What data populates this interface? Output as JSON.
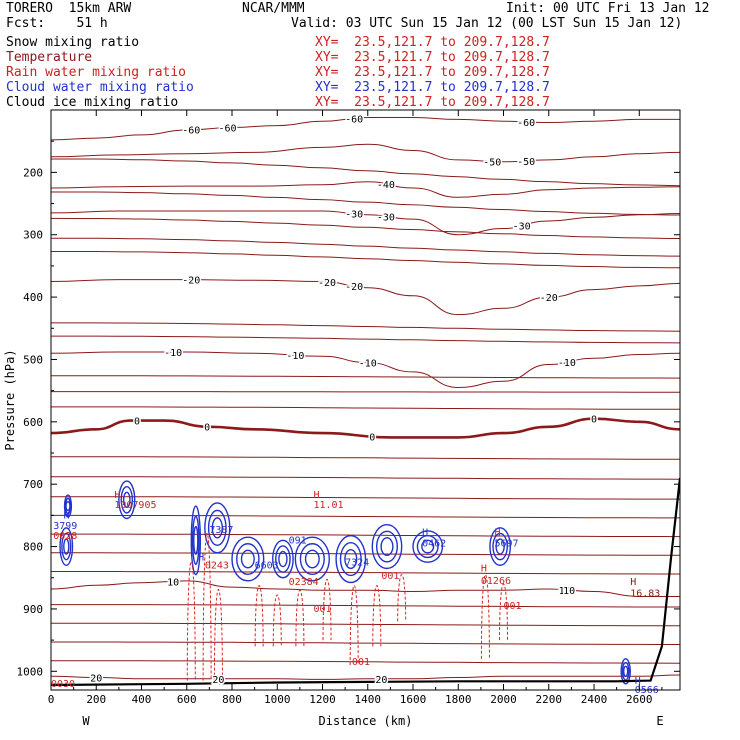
{
  "header": {
    "model": "TORERO  15km ARW",
    "center": "NCAR/MMM",
    "init": "Init: 00 UTC Fri 13 Jan 12",
    "fcst": "Fcst:    51 h",
    "valid": "Valid: 03 UTC Sun 15 Jan 12 (00 LST Sun 15 Jan 12)"
  },
  "legend": [
    {
      "name": "Snow mixing ratio",
      "xy": "XY=  23.5,121.7 to 209.7,128.7",
      "color": "#000000"
    },
    {
      "name": "Temperature",
      "xy": "XY=  23.5,121.7 to 209.7,128.7",
      "color": "#8b1a1a"
    },
    {
      "name": "Rain water mixing ratio",
      "xy": "XY=  23.5,121.7 to 209.7,128.7",
      "color": "#cc2222"
    },
    {
      "name": "Cloud water mixing ratio",
      "xy": "XY=  23.5,121.7 to 209.7,128.7",
      "color": "#2233cc"
    },
    {
      "name": "Cloud ice mixing ratio",
      "xy": "XY=  23.5,121.7 to 209.7,128.7",
      "color": "#000000"
    }
  ],
  "colors": {
    "temperature": "#8b1a1a",
    "rain": "#dd2222",
    "cloud_water": "#2233cc",
    "terrain": "#000000"
  },
  "chart_data": {
    "type": "cross-section",
    "xlabel": "Distance (km)",
    "ylabel": "Pressure (hPa)",
    "xlim": [
      0,
      2780
    ],
    "ylim": [
      1030,
      100
    ],
    "x_ticks": [
      0,
      200,
      400,
      600,
      800,
      1000,
      1200,
      1400,
      1600,
      1800,
      2000,
      2200,
      2400,
      2600
    ],
    "y_ticks": [
      200,
      300,
      400,
      500,
      600,
      700,
      800,
      900,
      1000
    ],
    "x_end_labels": {
      "left": "W",
      "right": "E"
    },
    "temperature_contours": [
      {
        "level": -60,
        "labels": [
          {
            "x": 620,
            "text": "-60"
          },
          {
            "x": 780,
            "text": "-60"
          },
          {
            "x": 1340,
            "text": "-60"
          },
          {
            "x": 2100,
            "text": "-60"
          }
        ],
        "points": [
          [
            0,
            148
          ],
          [
            200,
            145
          ],
          [
            400,
            140
          ],
          [
            600,
            132
          ],
          [
            800,
            128
          ],
          [
            1000,
            125
          ],
          [
            1200,
            118
          ],
          [
            1400,
            112
          ],
          [
            1600,
            112
          ],
          [
            1800,
            115
          ],
          [
            2000,
            118
          ],
          [
            2200,
            120
          ],
          [
            2400,
            118
          ],
          [
            2600,
            115
          ],
          [
            2780,
            115
          ]
        ]
      },
      {
        "level": -50,
        "labels": [
          {
            "x": 1950,
            "text": "-50"
          },
          {
            "x": 2100,
            "text": "-50"
          }
        ],
        "points": [
          [
            0,
            175
          ],
          [
            300,
            172
          ],
          [
            600,
            170
          ],
          [
            900,
            168
          ],
          [
            1200,
            160
          ],
          [
            1400,
            155
          ],
          [
            1600,
            165
          ],
          [
            1800,
            180
          ],
          [
            2000,
            183
          ],
          [
            2200,
            180
          ],
          [
            2400,
            175
          ],
          [
            2600,
            170
          ],
          [
            2780,
            168
          ]
        ]
      },
      {
        "level": -40,
        "labels": [
          {
            "x": 1480,
            "text": "-40"
          }
        ],
        "points": [
          [
            0,
            225
          ],
          [
            300,
            223
          ],
          [
            600,
            222
          ],
          [
            900,
            222
          ],
          [
            1200,
            220
          ],
          [
            1400,
            215
          ],
          [
            1600,
            225
          ],
          [
            1800,
            240
          ],
          [
            2000,
            235
          ],
          [
            2200,
            228
          ],
          [
            2400,
            225
          ],
          [
            2600,
            224
          ],
          [
            2780,
            223
          ]
        ]
      },
      {
        "level": -30,
        "labels": [
          {
            "x": 1340,
            "text": "-30"
          },
          {
            "x": 1480,
            "text": "-30"
          },
          {
            "x": 2080,
            "text": "-30"
          }
        ],
        "points": [
          [
            0,
            265
          ],
          [
            300,
            262
          ],
          [
            600,
            262
          ],
          [
            900,
            262
          ],
          [
            1200,
            262
          ],
          [
            1400,
            268
          ],
          [
            1600,
            275
          ],
          [
            1800,
            300
          ],
          [
            2000,
            290
          ],
          [
            2200,
            278
          ],
          [
            2400,
            272
          ],
          [
            2600,
            268
          ],
          [
            2780,
            266
          ]
        ]
      },
      {
        "level": -20,
        "labels": [
          {
            "x": 620,
            "text": "-20"
          },
          {
            "x": 1220,
            "text": "-20"
          },
          {
            "x": 1340,
            "text": "-20"
          },
          {
            "x": 2200,
            "text": "-20"
          }
        ],
        "points": [
          [
            0,
            375
          ],
          [
            300,
            372
          ],
          [
            600,
            372
          ],
          [
            900,
            373
          ],
          [
            1200,
            375
          ],
          [
            1400,
            385
          ],
          [
            1600,
            398
          ],
          [
            1800,
            428
          ],
          [
            2000,
            418
          ],
          [
            2200,
            400
          ],
          [
            2400,
            388
          ],
          [
            2600,
            382
          ],
          [
            2780,
            378
          ]
        ]
      },
      {
        "level": -10,
        "labels": [
          {
            "x": 540,
            "text": "-10"
          },
          {
            "x": 1080,
            "text": "-10"
          },
          {
            "x": 1400,
            "text": "-10"
          },
          {
            "x": 2280,
            "text": "-10"
          }
        ],
        "points": [
          [
            0,
            490
          ],
          [
            300,
            488
          ],
          [
            600,
            488
          ],
          [
            900,
            490
          ],
          [
            1200,
            495
          ],
          [
            1400,
            505
          ],
          [
            1600,
            520
          ],
          [
            1800,
            545
          ],
          [
            2000,
            535
          ],
          [
            2200,
            508
          ],
          [
            2400,
            498
          ],
          [
            2600,
            492
          ],
          [
            2780,
            490
          ]
        ]
      },
      {
        "level": 0,
        "bold": true,
        "labels": [
          {
            "x": 380,
            "text": "0"
          },
          {
            "x": 690,
            "text": "0"
          },
          {
            "x": 1420,
            "text": "0"
          },
          {
            "x": 2400,
            "text": "0"
          }
        ],
        "points": [
          [
            0,
            618
          ],
          [
            200,
            612
          ],
          [
            350,
            598
          ],
          [
            500,
            598
          ],
          [
            700,
            608
          ],
          [
            900,
            612
          ],
          [
            1200,
            618
          ],
          [
            1500,
            625
          ],
          [
            1800,
            625
          ],
          [
            2000,
            618
          ],
          [
            2200,
            608
          ],
          [
            2400,
            595
          ],
          [
            2600,
            600
          ],
          [
            2780,
            612
          ]
        ]
      },
      {
        "level": 10,
        "labels": [
          {
            "x": 540,
            "text": "10"
          },
          {
            "x": 2270,
            "text": "10"
          },
          {
            "x": 2290,
            "text": "10"
          }
        ],
        "points": [
          [
            0,
            868
          ],
          [
            200,
            862
          ],
          [
            400,
            858
          ],
          [
            600,
            855
          ],
          [
            800,
            865
          ],
          [
            1000,
            868
          ],
          [
            1200,
            870
          ],
          [
            1400,
            870
          ],
          [
            1600,
            872
          ],
          [
            1800,
            870
          ],
          [
            2000,
            870
          ],
          [
            2200,
            868
          ],
          [
            2400,
            872
          ],
          [
            2600,
            880
          ],
          [
            2780,
            880
          ]
        ]
      },
      {
        "level": 20,
        "labels": [
          {
            "x": 200,
            "text": "20"
          },
          {
            "x": 740,
            "text": "20"
          },
          {
            "x": 1460,
            "text": "20"
          }
        ],
        "points": [
          [
            0,
            1008
          ],
          [
            200,
            1010
          ],
          [
            400,
            1012
          ],
          [
            600,
            1012
          ],
          [
            800,
            1012
          ],
          [
            1000,
            1012
          ],
          [
            1200,
            1013
          ],
          [
            1400,
            1012
          ],
          [
            1600,
            1012
          ],
          [
            1800,
            1010
          ],
          [
            2000,
            1008
          ],
          [
            2200,
            1008
          ],
          [
            2400,
            1008
          ],
          [
            2600,
            1008
          ],
          [
            2780,
            1006
          ]
        ]
      }
    ],
    "extra_isotherm_bands": [
      658,
      690,
      722,
      752,
      782,
      812,
      842,
      895,
      925,
      955,
      985,
      528,
      552,
      578,
      448,
      468,
      340,
      320,
      290,
      250,
      200
    ],
    "annotations": [
      {
        "x": 55,
        "p": 755,
        "text": "H",
        "color": "#2233cc"
      },
      {
        "x": 10,
        "p": 772,
        "text": "3799",
        "color": "#2233cc"
      },
      {
        "x": 10,
        "p": 788,
        "text": "0028",
        "color": "#cc2222"
      },
      {
        "x": 280,
        "p": 722,
        "text": "H",
        "color": "#cc2222"
      },
      {
        "x": 280,
        "p": 738,
        "text": "1007905",
        "color": "#cc2222"
      },
      {
        "x": 700,
        "p": 778,
        "text": "7387",
        "color": "#2233cc"
      },
      {
        "x": 650,
        "p": 822,
        "text": "H",
        "color": "#2233cc"
      },
      {
        "x": 680,
        "p": 835,
        "text": "0243",
        "color": "#cc2222"
      },
      {
        "x": 900,
        "p": 835,
        "text": "6603",
        "color": "#2233cc"
      },
      {
        "x": 1050,
        "p": 795,
        "text": "091",
        "color": "#2233cc"
      },
      {
        "x": 1160,
        "p": 722,
        "text": "H",
        "color": "#cc2222"
      },
      {
        "x": 1160,
        "p": 738,
        "text": "11.01",
        "color": "#cc2222"
      },
      {
        "x": 1300,
        "p": 830,
        "text": "7324",
        "color": "#2233cc"
      },
      {
        "x": 1050,
        "p": 862,
        "text": "02384",
        "color": "#cc2222"
      },
      {
        "x": 1160,
        "p": 905,
        "text": "001",
        "color": "#cc2222"
      },
      {
        "x": 1460,
        "p": 852,
        "text": "001",
        "color": "#cc2222"
      },
      {
        "x": 1640,
        "p": 800,
        "text": "0462",
        "color": "#2233cc"
      },
      {
        "x": 1640,
        "p": 782,
        "text": "H",
        "color": "#2233cc"
      },
      {
        "x": 1960,
        "p": 800,
        "text": "5697",
        "color": "#2233cc"
      },
      {
        "x": 1960,
        "p": 782,
        "text": "H",
        "color": "#cc2222"
      },
      {
        "x": 1900,
        "p": 840,
        "text": "H",
        "color": "#cc2222"
      },
      {
        "x": 1900,
        "p": 860,
        "text": "01266",
        "color": "#cc2222"
      },
      {
        "x": 2000,
        "p": 900,
        "text": "001",
        "color": "#cc2222"
      },
      {
        "x": 1330,
        "p": 990,
        "text": "001",
        "color": "#cc2222"
      },
      {
        "x": 0,
        "p": 1025,
        "text": "0030",
        "color": "#cc2222"
      },
      {
        "x": 2560,
        "p": 862,
        "text": "H",
        "color": "#8b1a1a"
      },
      {
        "x": 2560,
        "p": 880,
        "text": "16.83",
        "color": "#8b1a1a"
      },
      {
        "x": 2580,
        "p": 1020,
        "text": "H",
        "color": "#2233cc"
      },
      {
        "x": 2580,
        "p": 1035,
        "text": "0566",
        "color": "#2233cc"
      }
    ],
    "cloud_water_cells": [
      {
        "x": 60,
        "p": 735,
        "w": 30,
        "h": 35
      },
      {
        "x": 40,
        "p": 800,
        "w": 55,
        "h": 60
      },
      {
        "x": 300,
        "p": 725,
        "w": 70,
        "h": 60
      },
      {
        "x": 620,
        "p": 790,
        "w": 40,
        "h": 110
      },
      {
        "x": 680,
        "p": 770,
        "w": 110,
        "h": 80
      },
      {
        "x": 800,
        "p": 820,
        "w": 140,
        "h": 70
      },
      {
        "x": 980,
        "p": 820,
        "w": 90,
        "h": 60
      },
      {
        "x": 1080,
        "p": 820,
        "w": 150,
        "h": 70
      },
      {
        "x": 1260,
        "p": 820,
        "w": 130,
        "h": 75
      },
      {
        "x": 1420,
        "p": 800,
        "w": 130,
        "h": 70
      },
      {
        "x": 1600,
        "p": 800,
        "w": 130,
        "h": 50
      },
      {
        "x": 1940,
        "p": 800,
        "w": 90,
        "h": 60
      },
      {
        "x": 2520,
        "p": 1000,
        "w": 40,
        "h": 40
      }
    ],
    "rain_columns": [
      {
        "x": 620,
        "p_top": 760,
        "p_bot": 1015
      },
      {
        "x": 690,
        "p_top": 700,
        "p_bot": 1015
      },
      {
        "x": 740,
        "p_top": 820,
        "p_bot": 1015
      },
      {
        "x": 920,
        "p_top": 830,
        "p_bot": 960
      },
      {
        "x": 1000,
        "p_top": 850,
        "p_bot": 960
      },
      {
        "x": 1100,
        "p_top": 840,
        "p_bot": 960
      },
      {
        "x": 1220,
        "p_top": 820,
        "p_bot": 950
      },
      {
        "x": 1340,
        "p_top": 820,
        "p_bot": 990
      },
      {
        "x": 1440,
        "p_top": 830,
        "p_bot": 960
      },
      {
        "x": 1550,
        "p_top": 820,
        "p_bot": 920
      },
      {
        "x": 1920,
        "p_top": 800,
        "p_bot": 980
      },
      {
        "x": 2000,
        "p_top": 830,
        "p_bot": 950
      }
    ],
    "terrain": [
      [
        0,
        1022
      ],
      [
        600,
        1020
      ],
      [
        1000,
        1018
      ],
      [
        1400,
        1017
      ],
      [
        1800,
        1016
      ],
      [
        2200,
        1016
      ],
      [
        2500,
        1016
      ],
      [
        2650,
        1015
      ],
      [
        2700,
        960
      ],
      [
        2740,
        820
      ],
      [
        2780,
        690
      ]
    ]
  }
}
